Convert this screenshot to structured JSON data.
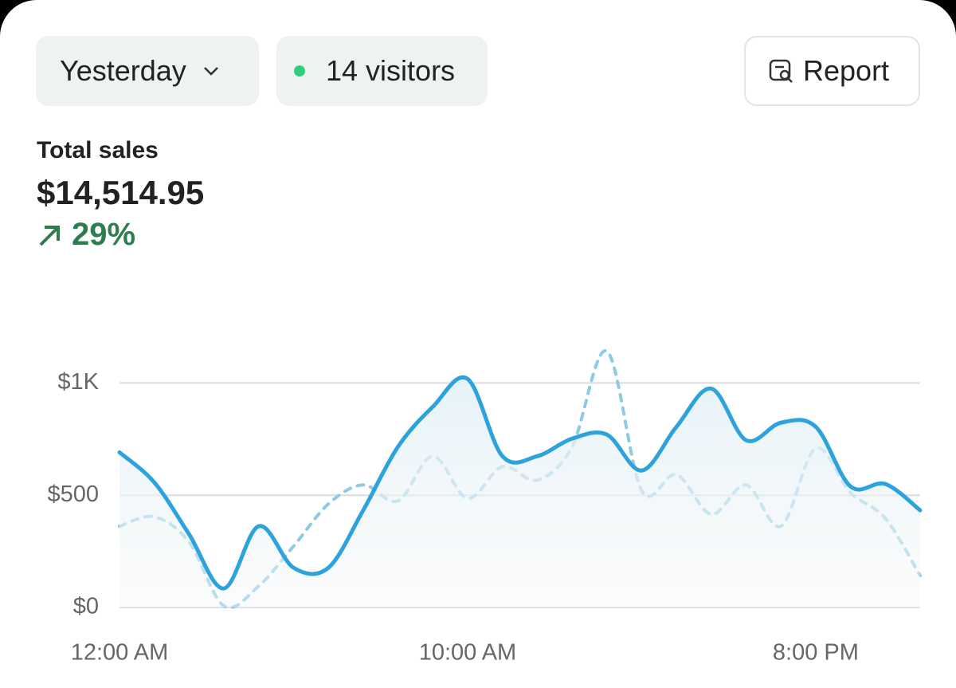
{
  "toolbar": {
    "period": "Yesterday",
    "visitors": "14 visitors",
    "report": "Report"
  },
  "summary": {
    "label": "Total sales",
    "amount": "$14,514.95",
    "change": "29%"
  },
  "chart_data": {
    "type": "line",
    "categories": [
      "12:00 AM",
      null,
      null,
      null,
      null,
      null,
      null,
      null,
      null,
      null,
      "10:00 AM",
      null,
      null,
      null,
      null,
      null,
      null,
      null,
      null,
      null,
      "8:00 PM",
      null,
      null,
      null
    ],
    "series": [
      {
        "color": "#2ea3db",
        "style": "solid",
        "area": true,
        "values": [
          691,
          557,
          326,
          85,
          362,
          177,
          177,
          433,
          716,
          894,
          1018,
          674,
          674,
          752,
          770,
          610,
          805,
          975,
          745,
          823,
          805,
          539,
          550,
          433
        ]
      },
      {
        "color": "#8ecbe3",
        "style": "dashed",
        "values": [
          362,
          404,
          291,
          7,
          96,
          273,
          461,
          546,
          475,
          674,
          486,
          628,
          567,
          716,
          1142,
          521,
          592,
          415,
          546,
          362,
          709,
          511,
          397,
          142
        ]
      }
    ],
    "ylim": [
      0,
      1250
    ],
    "yticks": [
      {
        "value": 0,
        "label": "$0"
      },
      {
        "value": 500,
        "label": "$500"
      },
      {
        "value": 1000,
        "label": "$1K"
      }
    ],
    "grid": true
  }
}
